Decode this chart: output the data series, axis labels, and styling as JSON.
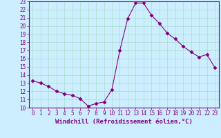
{
  "x": [
    0,
    1,
    2,
    3,
    4,
    5,
    6,
    7,
    8,
    9,
    10,
    11,
    12,
    13,
    14,
    15,
    16,
    17,
    18,
    19,
    20,
    21,
    22,
    23
  ],
  "y": [
    13.3,
    13.0,
    12.6,
    12.0,
    11.7,
    11.5,
    11.1,
    10.2,
    10.5,
    10.7,
    12.2,
    17.0,
    20.9,
    22.8,
    22.8,
    21.3,
    20.3,
    19.1,
    18.4,
    17.5,
    16.8,
    16.2,
    16.5,
    14.9
  ],
  "line_color": "#800080",
  "marker": "D",
  "marker_size": 2.5,
  "bg_color": "#cceeff",
  "grid_color": "#aaddcc",
  "xlabel": "Windchill (Refroidissement éolien,°C)",
  "xlim": [
    -0.5,
    23.5
  ],
  "ylim": [
    10,
    23
  ],
  "yticks": [
    10,
    11,
    12,
    13,
    14,
    15,
    16,
    17,
    18,
    19,
    20,
    21,
    22,
    23
  ],
  "xticks": [
    0,
    1,
    2,
    3,
    4,
    5,
    6,
    7,
    8,
    9,
    10,
    11,
    12,
    13,
    14,
    15,
    16,
    17,
    18,
    19,
    20,
    21,
    22,
    23
  ],
  "tick_fontsize": 5.5,
  "xlabel_fontsize": 6.5,
  "spine_color": "#800080",
  "tick_color": "#800080"
}
